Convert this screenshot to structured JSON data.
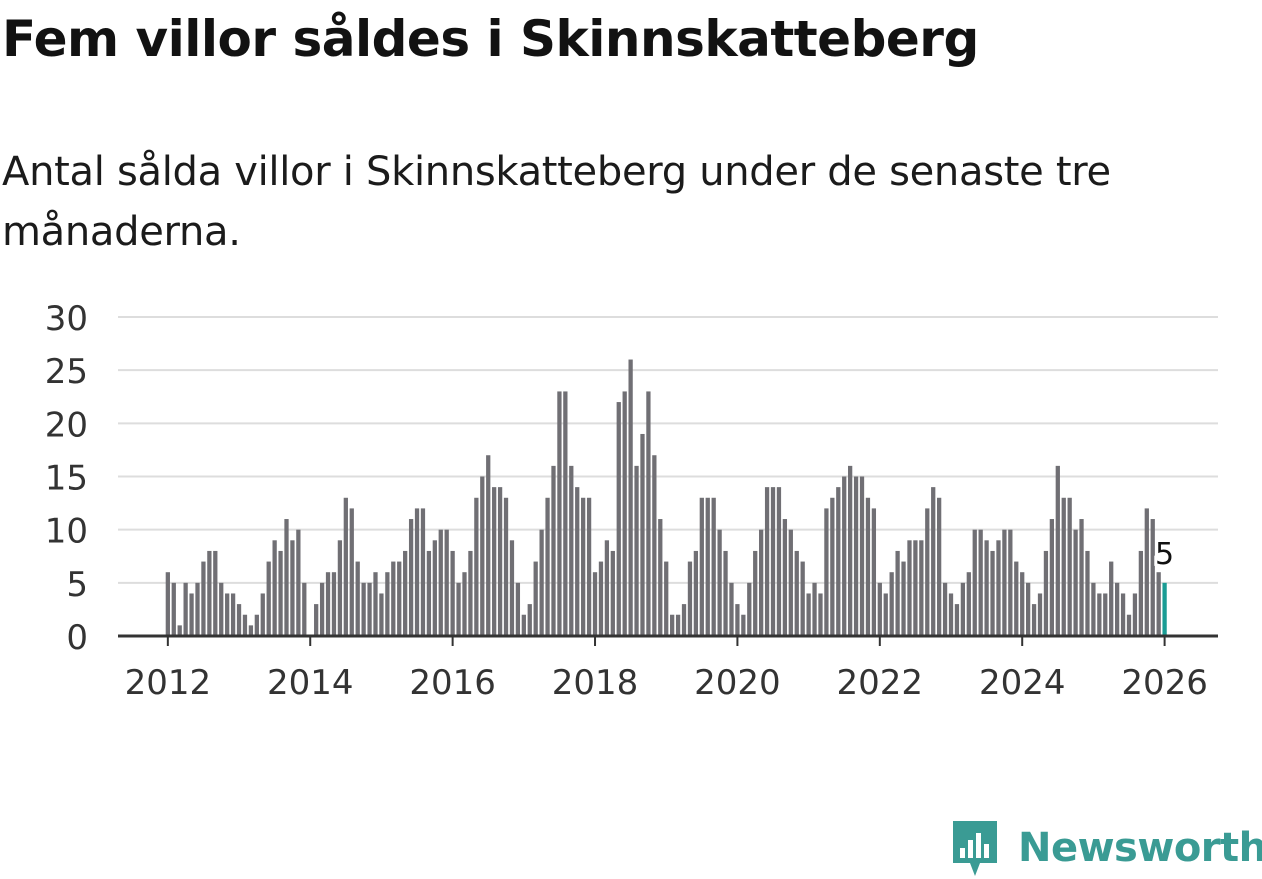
{
  "title": "Fem villor såldes i Skinnskatteberg",
  "subtitle": "Antal sålda villor i Skinnskatteberg under de senaste tre månaderna.",
  "brand": {
    "name": "Newsworthy",
    "color": "#3a9b94",
    "icon": "newsworthy-logo-icon"
  },
  "colors": {
    "bar": "#706f74",
    "highlight": "#1a9c94",
    "grid": "#dddddd",
    "axis": "#333333"
  },
  "chart_data": {
    "type": "bar",
    "title": "Fem villor såldes i Skinnskatteberg",
    "xlabel": "",
    "ylabel": "",
    "ylim": [
      0,
      30
    ],
    "yticks": [
      0,
      5,
      10,
      15,
      20,
      25,
      30
    ],
    "x_ticks": [
      "2012",
      "2014",
      "2016",
      "2018",
      "2020",
      "2022",
      "2024",
      "2026"
    ],
    "x_range": [
      2011.3,
      2026.75
    ],
    "start": "2012-01",
    "frequency": "monthly",
    "values": [
      6,
      5,
      1,
      5,
      4,
      5,
      7,
      8,
      8,
      5,
      4,
      4,
      3,
      2,
      1,
      2,
      4,
      7,
      9,
      8,
      11,
      9,
      10,
      5,
      0,
      3,
      5,
      6,
      6,
      9,
      13,
      12,
      7,
      5,
      5,
      6,
      4,
      6,
      7,
      7,
      8,
      11,
      12,
      12,
      8,
      9,
      10,
      10,
      8,
      5,
      6,
      8,
      13,
      15,
      17,
      14,
      14,
      13,
      9,
      5,
      2,
      3,
      7,
      10,
      13,
      16,
      23,
      23,
      16,
      14,
      13,
      13,
      6,
      7,
      9,
      8,
      22,
      23,
      26,
      16,
      19,
      23,
      17,
      11,
      7,
      2,
      2,
      3,
      7,
      8,
      13,
      13,
      13,
      10,
      8,
      5,
      3,
      2,
      5,
      8,
      10,
      14,
      14,
      14,
      11,
      10,
      8,
      7,
      4,
      5,
      4,
      12,
      13,
      14,
      15,
      16,
      15,
      15,
      13,
      12,
      5,
      4,
      6,
      8,
      7,
      9,
      9,
      9,
      12,
      14,
      13,
      5,
      4,
      3,
      5,
      6,
      10,
      10,
      9,
      8,
      9,
      10,
      10,
      7,
      6,
      5,
      3,
      4,
      8,
      11,
      16,
      13,
      13,
      10,
      11,
      8,
      5,
      4,
      4,
      7,
      5,
      4,
      2,
      4,
      8,
      12,
      11,
      6,
      5
    ],
    "highlight_last": true,
    "last_label": "5"
  }
}
